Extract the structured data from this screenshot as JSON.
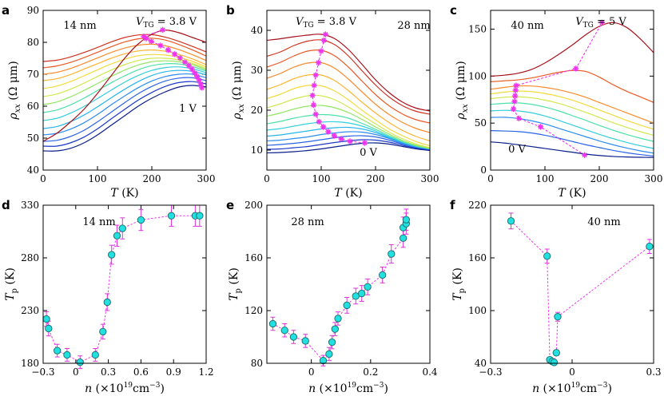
{
  "panel_letters": [
    "a",
    "b",
    "c",
    "d",
    "e",
    "f"
  ],
  "colors": {
    "temp_curves": [
      "#0a1e8c",
      "#1c38c8",
      "#2a64e6",
      "#2c8cf0",
      "#28b4ea",
      "#34cedc",
      "#4ee0a8",
      "#92e662",
      "#cfe850",
      "#f4da3c",
      "#fbb433",
      "#f88a2c",
      "#ea5a26",
      "#cf3322",
      "#a8121a"
    ],
    "peak_marker": "#ee33ee",
    "scatter_fill": "#22e0e0",
    "scatter_edge": "#1a6a6a",
    "errorbar": "#dd33dd"
  },
  "chart_data": [
    {
      "id": "a",
      "type": "line",
      "thickness_label": "14 nm",
      "vtg_top_label": "V_TG = 3.8 V",
      "vtg_bottom_label": "1 V",
      "xlabel": "T (K)",
      "ylabel": "ρxx (Ω μm)",
      "xlim": [
        0,
        300
      ],
      "ylim": [
        40,
        90
      ],
      "xticks": [
        0,
        100,
        200,
        300
      ],
      "yticks": [
        40,
        50,
        60,
        70,
        80,
        90
      ],
      "x": [
        0,
        25,
        50,
        75,
        100,
        125,
        150,
        175,
        200,
        225,
        250,
        275,
        300
      ],
      "series": [
        {
          "name": "c0",
          "values": [
            46.0,
            46.0,
            46.8,
            48.5,
            51.0,
            54.0,
            57.0,
            60.0,
            62.5,
            64.5,
            66.0,
            66.5,
            66.0
          ]
        },
        {
          "name": "c1",
          "values": [
            47.5,
            47.5,
            48.5,
            50.3,
            52.9,
            56.0,
            59.0,
            61.9,
            64.3,
            66.2,
            67.4,
            67.7,
            67.0
          ]
        },
        {
          "name": "c2",
          "values": [
            49.0,
            49.3,
            50.5,
            52.4,
            55.1,
            58.1,
            61.1,
            63.9,
            66.2,
            67.9,
            68.8,
            68.9,
            68.0
          ]
        },
        {
          "name": "c3",
          "values": [
            51.0,
            51.5,
            52.8,
            54.8,
            57.4,
            60.4,
            63.2,
            65.8,
            67.9,
            69.3,
            70.0,
            70.0,
            68.9
          ]
        },
        {
          "name": "c4",
          "values": [
            53.0,
            53.6,
            55.1,
            57.2,
            59.8,
            62.6,
            65.3,
            67.7,
            69.6,
            70.8,
            71.2,
            70.9,
            69.8
          ]
        },
        {
          "name": "c5",
          "values": [
            55.5,
            56.2,
            57.8,
            59.9,
            62.4,
            65.0,
            67.5,
            69.6,
            71.2,
            72.1,
            72.3,
            71.7,
            70.5
          ]
        },
        {
          "name": "c6",
          "values": [
            58.0,
            58.8,
            60.4,
            62.5,
            64.9,
            67.3,
            69.5,
            71.4,
            72.7,
            73.3,
            73.2,
            72.4,
            71.0
          ]
        },
        {
          "name": "c7",
          "values": [
            60.5,
            61.3,
            62.9,
            64.9,
            67.1,
            69.3,
            71.3,
            72.9,
            73.9,
            74.2,
            73.9,
            73.0,
            71.4
          ]
        },
        {
          "name": "c8",
          "values": [
            63.0,
            63.8,
            65.3,
            67.2,
            69.3,
            71.3,
            73.0,
            74.3,
            75.0,
            75.0,
            74.5,
            73.4,
            71.8
          ]
        },
        {
          "name": "c9",
          "values": [
            65.5,
            66.3,
            67.7,
            69.5,
            71.4,
            73.2,
            74.7,
            75.8,
            76.2,
            76.0,
            75.3,
            74.0,
            72.3
          ]
        },
        {
          "name": "c10",
          "values": [
            68.0,
            68.6,
            69.9,
            71.6,
            73.3,
            75.0,
            76.4,
            77.3,
            77.6,
            77.2,
            76.2,
            74.8,
            73.0
          ]
        },
        {
          "name": "c11",
          "values": [
            70.0,
            70.6,
            71.8,
            73.4,
            75.1,
            76.8,
            78.2,
            79.1,
            79.4,
            78.9,
            77.7,
            76.1,
            74.3
          ]
        },
        {
          "name": "c12",
          "values": [
            72.0,
            72.6,
            73.7,
            75.2,
            76.9,
            78.6,
            80.1,
            81.1,
            81.3,
            80.7,
            79.3,
            77.6,
            75.7
          ]
        },
        {
          "name": "c13",
          "values": [
            74.0,
            74.4,
            75.4,
            76.8,
            78.4,
            80.1,
            81.5,
            82.3,
            82.4,
            81.6,
            80.3,
            78.7,
            77.0
          ]
        },
        {
          "name": "c14",
          "values": [
            49.0,
            51.5,
            55.0,
            59.0,
            64.0,
            69.5,
            75.0,
            79.5,
            82.5,
            83.8,
            83.0,
            81.5,
            80.0
          ]
        }
      ],
      "peak_points": {
        "x": [
          292,
          290,
          287,
          283,
          279,
          274,
          268,
          261,
          252,
          242,
          230,
          216,
          199,
          190,
          185,
          220
        ],
        "y": [
          65.8,
          67.0,
          68.2,
          69.3,
          70.4,
          71.6,
          72.7,
          73.8,
          75.1,
          76.3,
          77.6,
          79.0,
          80.3,
          81.2,
          81.8,
          83.9
        ]
      }
    },
    {
      "id": "b",
      "type": "line",
      "thickness_label": "28 nm",
      "vtg_top_label": "V_TG = 3.8 V",
      "vtg_bottom_label": "0 V",
      "xlabel": "T (K)",
      "ylabel": "ρxx (Ω μm)",
      "xlim": [
        0,
        300
      ],
      "ylim": [
        5,
        45
      ],
      "xticks": [
        0,
        100,
        200,
        300
      ],
      "yticks": [
        10,
        20,
        30,
        40
      ],
      "x": [
        0,
        25,
        50,
        75,
        100,
        125,
        150,
        175,
        200,
        225,
        250,
        275,
        300
      ],
      "series": [
        {
          "name": "c0",
          "values": [
            9.3,
            9.4,
            9.6,
            9.9,
            10.3,
            10.8,
            11.3,
            11.7,
            11.8,
            11.5,
            10.9,
            10.3,
            9.9
          ]
        },
        {
          "name": "c1",
          "values": [
            10.2,
            10.3,
            10.6,
            10.9,
            11.4,
            11.9,
            12.3,
            12.6,
            12.5,
            12.0,
            11.2,
            10.5,
            10.0
          ]
        },
        {
          "name": "c2",
          "values": [
            11.2,
            11.4,
            11.7,
            12.1,
            12.6,
            13.1,
            13.5,
            13.6,
            13.3,
            12.5,
            11.5,
            10.7,
            10.2
          ]
        },
        {
          "name": "c3",
          "values": [
            12.3,
            12.5,
            12.9,
            13.3,
            13.9,
            14.3,
            14.6,
            14.5,
            13.9,
            12.9,
            11.7,
            10.8,
            10.3
          ]
        },
        {
          "name": "c4",
          "values": [
            13.5,
            13.8,
            14.3,
            14.8,
            15.3,
            15.6,
            15.7,
            15.3,
            14.4,
            13.1,
            11.9,
            10.9,
            10.3
          ]
        },
        {
          "name": "c5",
          "values": [
            15.0,
            15.4,
            16.0,
            16.6,
            17.0,
            17.1,
            16.8,
            16.0,
            14.8,
            13.3,
            12.0,
            11.0,
            10.3
          ]
        },
        {
          "name": "c6",
          "values": [
            16.6,
            17.2,
            18.0,
            18.6,
            18.9,
            18.7,
            18.0,
            16.7,
            15.2,
            13.6,
            12.1,
            11.0,
            10.3
          ]
        },
        {
          "name": "c7",
          "values": [
            18.5,
            19.3,
            20.3,
            21.0,
            21.2,
            20.6,
            19.4,
            17.7,
            15.8,
            14.0,
            12.4,
            11.2,
            10.4
          ]
        },
        {
          "name": "c8",
          "values": [
            20.6,
            21.6,
            22.8,
            23.6,
            23.6,
            22.6,
            20.8,
            18.7,
            16.6,
            14.5,
            12.8,
            11.5,
            10.6
          ]
        },
        {
          "name": "c9",
          "values": [
            22.9,
            24.0,
            25.4,
            26.2,
            26.1,
            24.8,
            22.6,
            20.0,
            17.6,
            15.3,
            13.6,
            12.1,
            11.1
          ]
        },
        {
          "name": "c10",
          "values": [
            25.2,
            26.4,
            27.9,
            28.8,
            28.8,
            27.4,
            24.9,
            22.0,
            19.3,
            16.9,
            14.9,
            13.4,
            12.3
          ]
        },
        {
          "name": "c11",
          "values": [
            28.0,
            29.2,
            30.8,
            31.8,
            31.9,
            30.5,
            27.8,
            24.6,
            21.5,
            18.9,
            16.9,
            15.4,
            14.4
          ]
        },
        {
          "name": "c12",
          "values": [
            30.8,
            32.0,
            33.6,
            34.8,
            35.0,
            33.6,
            30.8,
            27.3,
            23.9,
            21.1,
            19.0,
            17.6,
            16.8
          ]
        },
        {
          "name": "c13",
          "values": [
            33.5,
            34.6,
            36.2,
            37.3,
            37.6,
            36.4,
            33.6,
            29.9,
            26.3,
            23.3,
            21.1,
            19.7,
            19.0
          ]
        },
        {
          "name": "c14",
          "values": [
            37.5,
            37.9,
            38.4,
            38.8,
            39.0,
            37.9,
            35.2,
            31.5,
            27.6,
            24.4,
            22.0,
            20.5,
            19.8
          ]
        }
      ],
      "peak_points": {
        "x": [
          108,
          105,
          100,
          95,
          90,
          87,
          84,
          86,
          90,
          96,
          104,
          113,
          124,
          137,
          153,
          180
        ],
        "y": [
          39.0,
          37.5,
          34.8,
          31.9,
          28.8,
          26.2,
          23.7,
          21.3,
          19.0,
          17.1,
          15.8,
          14.6,
          13.6,
          12.8,
          12.2,
          11.8
        ]
      }
    },
    {
      "id": "c",
      "type": "line",
      "thickness_label": "40 nm",
      "vtg_top_label": "V_TG = 5 V",
      "vtg_bottom_label": "0 V",
      "xlabel": "T (K)",
      "ylabel": "ρxx (Ω μm)",
      "xlim": [
        0,
        300
      ],
      "ylim": [
        0,
        170
      ],
      "xticks": [
        0,
        100,
        200,
        300
      ],
      "yticks": [
        0,
        50,
        100,
        150
      ],
      "x": [
        0,
        25,
        50,
        75,
        100,
        125,
        150,
        175,
        200,
        225,
        250,
        275,
        300
      ],
      "series": [
        {
          "name": "c0",
          "values": [
            30.0,
            28.8,
            27.0,
            25.0,
            23.0,
            21.0,
            19.0,
            17.0,
            15.5,
            14.5,
            13.9,
            13.6,
            13.5
          ]
        },
        {
          "name": "c1",
          "values": [
            42.0,
            41.6,
            41.0,
            39.5,
            37.0,
            34.0,
            30.5,
            27.0,
            24.0,
            21.0,
            18.5,
            16.5,
            15.0
          ]
        },
        {
          "name": "c2",
          "values": [
            56.0,
            56.2,
            55.0,
            52.5,
            49.0,
            44.5,
            40.0,
            35.5,
            31.0,
            27.0,
            23.5,
            20.5,
            18.0
          ]
        },
        {
          "name": "c3",
          "values": [
            63.0,
            63.6,
            63.0,
            61.0,
            57.5,
            53.0,
            48.0,
            43.0,
            38.0,
            33.5,
            29.5,
            26.0,
            23.0
          ]
        },
        {
          "name": "c4",
          "values": [
            70.0,
            71.0,
            71.5,
            70.0,
            67.0,
            63.0,
            58.0,
            53.0,
            47.5,
            42.5,
            38.0,
            34.0,
            30.5
          ]
        },
        {
          "name": "c5",
          "values": [
            76.0,
            77.5,
            78.0,
            77.0,
            74.5,
            71.0,
            66.5,
            61.5,
            56.0,
            50.5,
            45.5,
            41.0,
            37.0
          ]
        },
        {
          "name": "c6",
          "values": [
            81.0,
            83.0,
            84.0,
            83.5,
            81.5,
            78.5,
            74.5,
            69.5,
            64.0,
            58.5,
            53.0,
            48.0,
            43.5
          ]
        },
        {
          "name": "c7",
          "values": [
            86.0,
            88.0,
            89.5,
            89.5,
            88.0,
            85.5,
            82.0,
            77.5,
            72.0,
            66.5,
            61.0,
            55.5,
            50.0
          ]
        },
        {
          "name": "c8",
          "values": [
            94.0,
            95.0,
            96.0,
            98.0,
            101.0,
            104.0,
            106.0,
            105.0,
            99.0,
            91.0,
            84.0,
            78.0,
            72.0
          ]
        },
        {
          "name": "c9",
          "values": [
            100.0,
            101.0,
            103.0,
            107.0,
            114.0,
            123.0,
            133.0,
            144.0,
            153.0,
            157.0,
            152.0,
            140.0,
            125.0
          ]
        }
      ],
      "peak_points": {
        "x": [
          173,
          92,
          52,
          42,
          44,
          45,
          46,
          47,
          157,
          205
        ],
        "y": [
          16,
          46,
          55,
          65,
          73,
          79,
          85,
          90,
          108,
          157
        ]
      }
    },
    {
      "id": "d",
      "type": "scatter",
      "thickness_label": "14 nm",
      "xlabel": "n (×10¹⁹cm⁻³)",
      "ylabel": "Tp (K)",
      "xlim": [
        -0.3,
        1.2
      ],
      "ylim": [
        180,
        330
      ],
      "xticks": [
        -0.3,
        0,
        0.3,
        0.6,
        0.9,
        1.2
      ],
      "yticks": [
        180,
        230,
        280,
        330
      ],
      "x": [
        -0.27,
        -0.25,
        -0.17,
        -0.08,
        0.04,
        0.18,
        0.25,
        0.29,
        0.33,
        0.38,
        0.43,
        0.6,
        0.88,
        1.1,
        1.14
      ],
      "values": [
        222,
        213,
        192,
        188,
        181,
        188,
        210,
        238,
        283,
        301,
        308,
        316,
        320,
        320,
        320
      ],
      "errors": [
        7,
        7,
        6,
        6,
        6,
        6,
        7,
        8,
        9,
        10,
        10,
        10,
        10,
        10,
        10
      ]
    },
    {
      "id": "e",
      "type": "scatter",
      "thickness_label": "28 nm",
      "xlabel": "n (×10¹⁹cm⁻³)",
      "ylabel": "Tp (K)",
      "xlim": [
        -0.15,
        0.4
      ],
      "ylim": [
        80,
        200
      ],
      "xticks": [
        0,
        0.2,
        0.4
      ],
      "yticks": [
        80,
        120,
        160,
        200
      ],
      "x": [
        -0.13,
        -0.09,
        -0.06,
        -0.02,
        0.04,
        0.06,
        0.07,
        0.08,
        0.09,
        0.12,
        0.15,
        0.17,
        0.19,
        0.24,
        0.27,
        0.31,
        0.31,
        0.32,
        0.32
      ],
      "values": [
        110,
        105,
        100,
        97,
        82,
        87,
        96,
        106,
        114,
        124,
        131,
        133,
        138,
        147,
        163,
        175,
        183,
        186,
        189
      ],
      "errors": [
        5,
        5,
        5,
        5,
        4,
        5,
        5,
        5,
        5,
        6,
        6,
        6,
        6,
        6,
        7,
        7,
        8,
        8,
        8
      ]
    },
    {
      "id": "f",
      "type": "scatter",
      "thickness_label": "40 nm",
      "xlabel": "n (×10¹⁹cm⁻³)",
      "ylabel": "Tp (K)",
      "xlim": [
        -0.3,
        0.3
      ],
      "ylim": [
        40,
        220
      ],
      "xticks": [
        -0.3,
        0,
        0.3
      ],
      "yticks": [
        40,
        100,
        160,
        220
      ],
      "x": [
        -0.225,
        -0.092,
        -0.082,
        -0.073,
        -0.066,
        -0.058,
        -0.053,
        0.285
      ],
      "values": [
        202,
        162,
        44,
        42,
        41,
        52,
        93,
        173
      ],
      "errors": [
        9,
        8,
        2,
        2,
        2,
        3,
        5,
        8
      ]
    }
  ]
}
